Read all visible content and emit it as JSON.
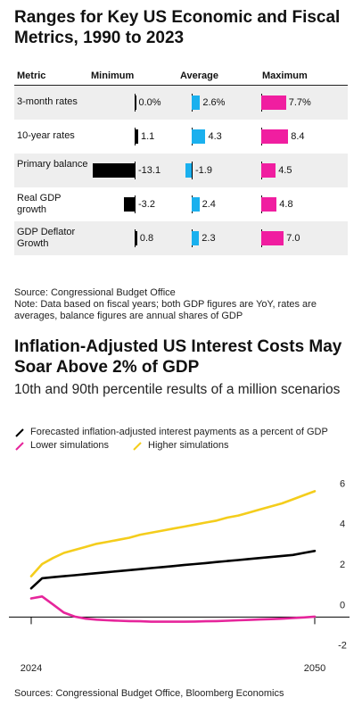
{
  "table": {
    "title": "Ranges for Key US Economic and Fiscal Metrics, 1990 to 2023",
    "headers": [
      "Metric",
      "Minimum",
      "Average",
      "Maximum"
    ],
    "rows": [
      {
        "metric": "3-month rates",
        "min": "0.0%",
        "avg": "2.6%",
        "max": "7.7%",
        "minv": 0.0,
        "avgv": 2.6,
        "maxv": 7.7
      },
      {
        "metric": "10-year rates",
        "min": "1.1",
        "avg": "4.3",
        "max": "8.4",
        "minv": 1.1,
        "avgv": 4.3,
        "maxv": 8.4
      },
      {
        "metric": "Primary balance",
        "min": "-13.1",
        "avg": "-1.9",
        "max": "4.5",
        "minv": -13.1,
        "avgv": -1.9,
        "maxv": 4.5
      },
      {
        "metric": "Real GDP growth",
        "min": "-3.2",
        "avg": "2.4",
        "max": "4.8",
        "minv": -3.2,
        "avgv": 2.4,
        "maxv": 4.8
      },
      {
        "metric": "GDP Deflator Growth",
        "min": "0.8",
        "avg": "2.3",
        "max": "7.0",
        "minv": 0.8,
        "avgv": 2.3,
        "maxv": 7.0
      }
    ],
    "source": "Source: Congressional Budget Office",
    "note": "Note: Data based on fiscal years; both GDP figures are YoY, rates are averages, balance figures are annual shares of GDP"
  },
  "chart_data": {
    "type": "line",
    "title": "Inflation-Adjusted US Interest Costs May Soar Above 2% of GDP",
    "subtitle": "10th and 90th percentile results of a million scenarios",
    "x": [
      2024,
      2025,
      2026,
      2027,
      2028,
      2029,
      2030,
      2031,
      2032,
      2033,
      2034,
      2035,
      2036,
      2037,
      2038,
      2039,
      2040,
      2041,
      2042,
      2043,
      2044,
      2045,
      2046,
      2047,
      2048,
      2049,
      2050
    ],
    "xticks": [
      "2024",
      "2050"
    ],
    "yticks": [
      "6",
      "4",
      "2",
      "0",
      "-2"
    ],
    "ylim": [
      -2.5,
      6.5
    ],
    "series": [
      {
        "name": "Forecasted inflation-adjusted interest payments as a percent of GDP",
        "color": "#000000",
        "values": [
          0.8,
          1.3,
          1.35,
          1.4,
          1.45,
          1.5,
          1.55,
          1.6,
          1.65,
          1.7,
          1.75,
          1.8,
          1.85,
          1.9,
          1.95,
          2.0,
          2.05,
          2.1,
          2.15,
          2.2,
          2.25,
          2.3,
          2.35,
          2.4,
          2.45,
          2.55,
          2.65
        ]
      },
      {
        "name": "Lower simulations",
        "color": "#e6259b",
        "values": [
          0.3,
          0.4,
          0.0,
          -0.4,
          -0.6,
          -0.7,
          -0.75,
          -0.78,
          -0.8,
          -0.82,
          -0.83,
          -0.85,
          -0.85,
          -0.85,
          -0.85,
          -0.84,
          -0.83,
          -0.82,
          -0.8,
          -0.78,
          -0.76,
          -0.74,
          -0.72,
          -0.7,
          -0.67,
          -0.64,
          -0.6
        ]
      },
      {
        "name": "Higher simulations",
        "color": "#f4cd1c",
        "values": [
          1.4,
          2.0,
          2.3,
          2.55,
          2.7,
          2.85,
          3.0,
          3.1,
          3.2,
          3.3,
          3.45,
          3.55,
          3.65,
          3.75,
          3.85,
          3.95,
          4.05,
          4.15,
          4.3,
          4.4,
          4.55,
          4.7,
          4.85,
          5.0,
          5.2,
          5.4,
          5.6
        ]
      }
    ],
    "source": "Sources: Congressional Budget Office, Bloomberg Economics"
  }
}
